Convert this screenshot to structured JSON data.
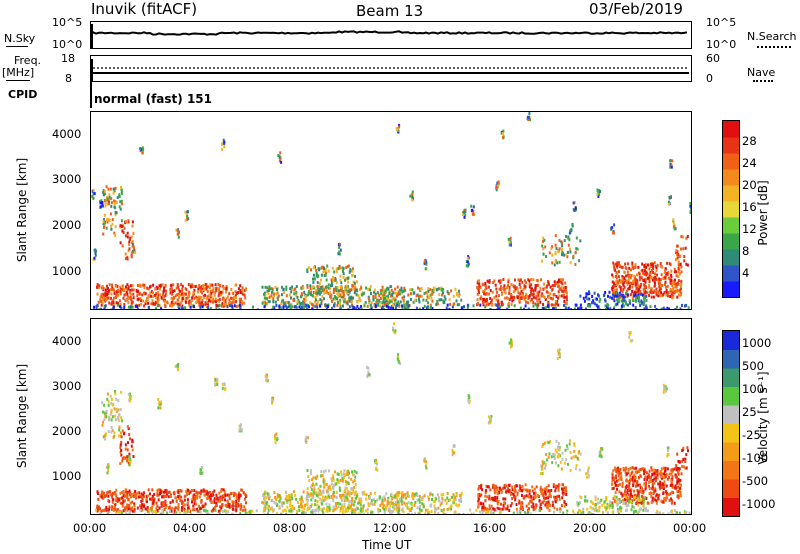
{
  "header": {
    "station": "Inuvik (fitACF)",
    "beam": "Beam 13",
    "date": "03/Feb/2019"
  },
  "top_panels": {
    "nsky_label": "N.Sky",
    "nsky_ticks": [
      "10^5",
      "10^0"
    ],
    "nsearch_label": "N.Search",
    "nsearch_ticks": [
      "10^5",
      "10^0"
    ],
    "freq_label": "Freq.",
    "freq_unit": "[MHz]",
    "freq_ticks": [
      "18",
      "8"
    ],
    "nave_label": "Nave",
    "nave_ticks": [
      "60",
      "0"
    ],
    "cpid_label": "CPID",
    "cpid_value": "normal (fast) 151"
  },
  "chart_data": [
    {
      "type": "heatmap",
      "name": "power-panel",
      "ylabel": "Slant Range [km]",
      "yticks": [
        1000,
        2000,
        3000,
        4000
      ],
      "ylim": [
        180,
        4500
      ],
      "xlim_hours": [
        0,
        24
      ],
      "colorbar": {
        "label": "Power [dB]",
        "ticks": [
          "4",
          "8",
          "12",
          "16",
          "20",
          "24",
          "28"
        ],
        "colors": [
          "#1a1aff",
          "#2f55c8",
          "#2f8a78",
          "#3aa64a",
          "#6ccd3c",
          "#e6d838",
          "#f4b226",
          "#f48a1e",
          "#f06018",
          "#e83416",
          "#e01010"
        ]
      }
    },
    {
      "type": "heatmap",
      "name": "velocity-panel",
      "ylabel": "Slant Range [km]",
      "yticks": [
        1000,
        2000,
        3000,
        4000
      ],
      "ylim": [
        180,
        4500
      ],
      "xlim_hours": [
        0,
        24
      ],
      "colorbar": {
        "label": "Velocity [m s⁻¹]",
        "ticks": [
          "1000",
          "500",
          "100",
          "25",
          "-25",
          "-100",
          "-500",
          "-1000"
        ],
        "colors": [
          "#1a2ad8",
          "#2f66b4",
          "#3a9a6e",
          "#5ac83c",
          "#c0c0c0",
          "#f2c418",
          "#f49c18",
          "#f47418",
          "#ee4a14",
          "#e01010"
        ]
      }
    }
  ],
  "xaxis": {
    "ticks": [
      "00:00",
      "04:00",
      "08:00",
      "12:00",
      "16:00",
      "20:00",
      "00:00"
    ],
    "label": "Time UT"
  }
}
